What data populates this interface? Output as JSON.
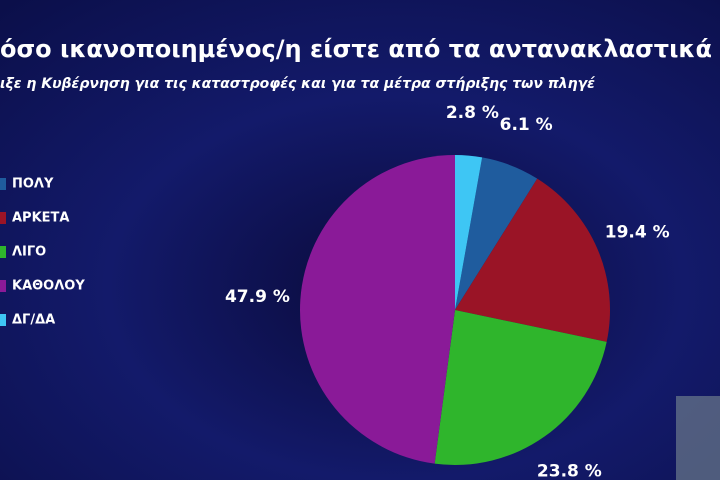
{
  "chart_data": {
    "type": "pie",
    "title": "όσο ικανοποιημένος/η είστε από τα αντανακλαστικά",
    "subtitle": "ιξε η Κυβέρνηση για τις καταστροφές και για τα μέτρα στήριξης των πληγέ",
    "categories": [
      "ΠΟΛΥ",
      "ΑΡΚΕΤΑ",
      "ΛΙΓΟ",
      "ΚΑΘΟΛΟΥ",
      "ΔΓ/ΔΑ"
    ],
    "values": [
      6.1,
      19.4,
      23.8,
      47.9,
      2.8
    ],
    "value_labels": [
      "6.1 %",
      "19.4 %",
      "23.8 %",
      "47.9 %",
      "2.8 %"
    ],
    "colors": [
      "#1f5c9e",
      "#9a1426",
      "#2fb52c",
      "#8a1a98",
      "#3ec6f4"
    ]
  }
}
